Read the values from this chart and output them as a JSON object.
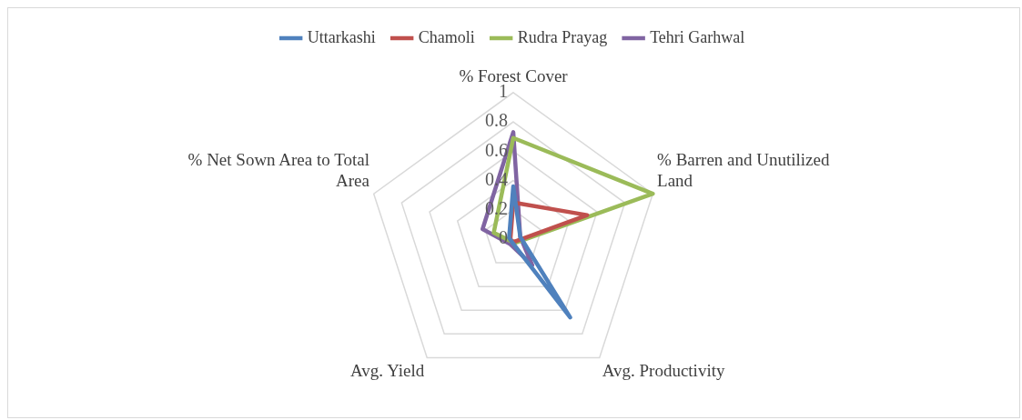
{
  "chart_data": {
    "type": "radar",
    "categories": [
      "% Forest Cover",
      "% Barren and Unutilized Land",
      "Avg. Productivity",
      "Avg. Yield",
      "% Net Sown Area to Total Area"
    ],
    "series": [
      {
        "name": "Uttarkashi",
        "color": "#4f81bd",
        "values": [
          0.36,
          0.05,
          0.66,
          0.02,
          0.03
        ]
      },
      {
        "name": "Chamoli",
        "color": "#c0504d",
        "values": [
          0.25,
          0.53,
          0.02,
          0.02,
          0.02
        ]
      },
      {
        "name": "Rudra Prayag",
        "color": "#9bbb59",
        "values": [
          0.69,
          1.0,
          0.03,
          0.02,
          0.14
        ]
      },
      {
        "name": "Tehri Garhwal",
        "color": "#8064a2",
        "values": [
          0.73,
          0.05,
          0.22,
          0.04,
          0.22
        ]
      }
    ],
    "ylim": [
      0,
      1
    ],
    "yticks": [
      0,
      0.2,
      0.4,
      0.6,
      0.8,
      1
    ],
    "grid": true,
    "legend": "top",
    "marker": "none"
  }
}
